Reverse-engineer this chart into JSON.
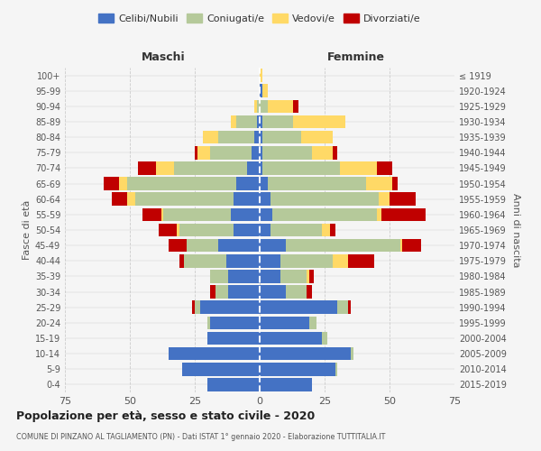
{
  "age_groups": [
    "0-4",
    "5-9",
    "10-14",
    "15-19",
    "20-24",
    "25-29",
    "30-34",
    "35-39",
    "40-44",
    "45-49",
    "50-54",
    "55-59",
    "60-64",
    "65-69",
    "70-74",
    "75-79",
    "80-84",
    "85-89",
    "90-94",
    "95-99",
    "100+"
  ],
  "birth_years": [
    "2015-2019",
    "2010-2014",
    "2005-2009",
    "2000-2004",
    "1995-1999",
    "1990-1994",
    "1985-1989",
    "1980-1984",
    "1975-1979",
    "1970-1974",
    "1965-1969",
    "1960-1964",
    "1955-1959",
    "1950-1954",
    "1945-1949",
    "1940-1944",
    "1935-1939",
    "1930-1934",
    "1925-1929",
    "1920-1924",
    "≤ 1919"
  ],
  "male": {
    "celibi": [
      20,
      30,
      35,
      20,
      19,
      23,
      12,
      12,
      13,
      16,
      10,
      11,
      10,
      9,
      5,
      3,
      2,
      1,
      0,
      0,
      0
    ],
    "coniugati": [
      0,
      0,
      0,
      0,
      1,
      2,
      5,
      7,
      16,
      12,
      21,
      26,
      38,
      42,
      28,
      16,
      14,
      8,
      1,
      0,
      0
    ],
    "vedovi": [
      0,
      0,
      0,
      0,
      0,
      0,
      0,
      0,
      0,
      0,
      1,
      1,
      3,
      3,
      7,
      5,
      6,
      2,
      1,
      0,
      0
    ],
    "divorziati": [
      0,
      0,
      0,
      0,
      0,
      1,
      2,
      0,
      2,
      7,
      7,
      7,
      6,
      6,
      7,
      1,
      0,
      0,
      0,
      0,
      0
    ]
  },
  "female": {
    "nubili": [
      20,
      29,
      35,
      24,
      19,
      30,
      10,
      8,
      8,
      10,
      4,
      5,
      4,
      3,
      1,
      1,
      1,
      1,
      0,
      1,
      0
    ],
    "coniugate": [
      0,
      1,
      1,
      2,
      3,
      4,
      8,
      10,
      20,
      44,
      20,
      40,
      42,
      38,
      30,
      19,
      15,
      12,
      3,
      0,
      0
    ],
    "vedove": [
      0,
      0,
      0,
      0,
      0,
      0,
      0,
      1,
      6,
      1,
      3,
      2,
      4,
      10,
      14,
      8,
      12,
      20,
      10,
      2,
      1
    ],
    "divorziate": [
      0,
      0,
      0,
      0,
      0,
      1,
      2,
      2,
      10,
      7,
      2,
      17,
      10,
      2,
      6,
      2,
      0,
      0,
      2,
      0,
      0
    ]
  },
  "colors": {
    "celibi": "#4472c4",
    "coniugati": "#b5c99a",
    "vedovi": "#ffd966",
    "divorziati": "#c00000"
  },
  "xlim": 75,
  "title": "Popolazione per età, sesso e stato civile - 2020",
  "subtitle": "COMUNE DI PINZANO AL TAGLIAMENTO (PN) - Dati ISTAT 1° gennaio 2020 - Elaborazione TUTTITALIA.IT",
  "ylabel_left": "Fasce di età",
  "ylabel_right": "Anni di nascita",
  "xlabel_left": "Maschi",
  "xlabel_right": "Femmine",
  "bg_color": "#f5f5f5",
  "plot_bg": "#f5f5f5",
  "grid_color": "#cccccc",
  "bar_height": 0.85
}
